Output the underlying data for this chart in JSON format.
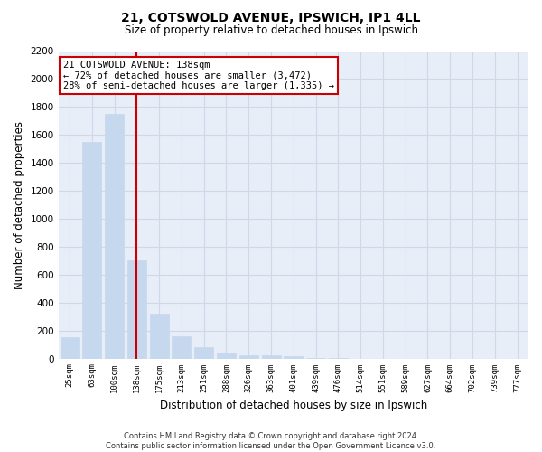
{
  "title1": "21, COTSWOLD AVENUE, IPSWICH, IP1 4LL",
  "title2": "Size of property relative to detached houses in Ipswich",
  "xlabel": "Distribution of detached houses by size in Ipswich",
  "ylabel": "Number of detached properties",
  "annotation_line1": "21 COTSWOLD AVENUE: 138sqm",
  "annotation_line2": "← 72% of detached houses are smaller (3,472)",
  "annotation_line3": "28% of semi-detached houses are larger (1,335) →",
  "property_bin_index": 3,
  "categories": [
    "25sqm",
    "63sqm",
    "100sqm",
    "138sqm",
    "175sqm",
    "213sqm",
    "251sqm",
    "288sqm",
    "326sqm",
    "363sqm",
    "401sqm",
    "439sqm",
    "476sqm",
    "514sqm",
    "551sqm",
    "589sqm",
    "627sqm",
    "664sqm",
    "702sqm",
    "739sqm",
    "777sqm"
  ],
  "values": [
    150,
    1550,
    1750,
    700,
    320,
    160,
    80,
    45,
    25,
    20,
    15,
    5,
    3,
    0,
    0,
    0,
    0,
    0,
    0,
    0,
    0
  ],
  "bar_color": "#c5d8ee",
  "bar_edgecolor": "#c5d8ee",
  "redline_color": "#cc0000",
  "annotation_box_edgecolor": "#cc0000",
  "annotation_box_facecolor": "#ffffff",
  "grid_color": "#d0d8e8",
  "background_color": "#e8eef8",
  "ylim": [
    0,
    2200
  ],
  "yticks": [
    0,
    200,
    400,
    600,
    800,
    1000,
    1200,
    1400,
    1600,
    1800,
    2000,
    2200
  ],
  "footer1": "Contains HM Land Registry data © Crown copyright and database right 2024.",
  "footer2": "Contains public sector information licensed under the Open Government Licence v3.0."
}
